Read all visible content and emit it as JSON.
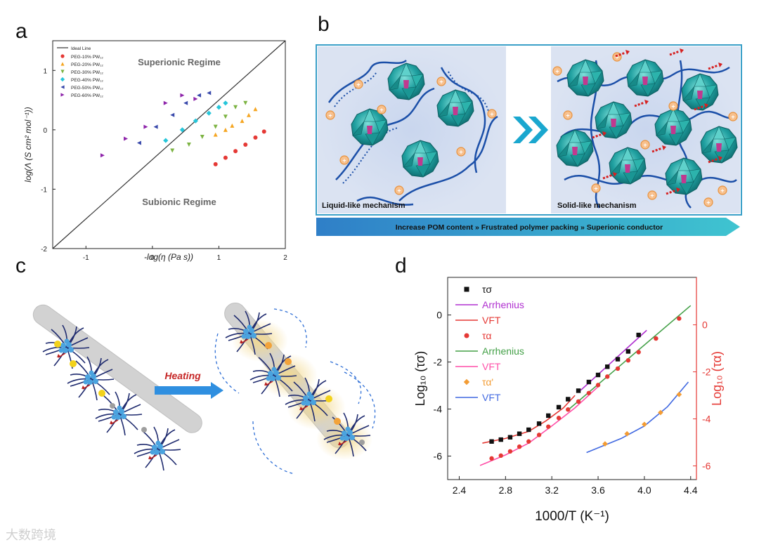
{
  "panels": {
    "a": "a",
    "b": "b",
    "c": "c",
    "d": "d"
  },
  "chart_data": [
    {
      "type": "scatter",
      "panel": "a",
      "xlabel": "-log(η (Pa s))",
      "ylabel": "log(Λ (S cm² mol⁻¹))",
      "xlim": [
        -1.5,
        2.0
      ],
      "ylim": [
        -2.0,
        1.5
      ],
      "xticks": [
        -1,
        0,
        1,
        2
      ],
      "yticks": [
        -2,
        -1,
        0,
        1
      ],
      "annotations": [
        "Superionic Regime",
        "Subionic Regime"
      ],
      "legend_position": "top-left",
      "ideal_line": {
        "name": "Ideal Line",
        "x": [
          -1.5,
          2.0
        ],
        "y": [
          -2.0,
          1.5
        ]
      },
      "series": [
        {
          "name": "PEG-10% PW₁₂",
          "color": "#e53935",
          "marker": "circle",
          "x": [
            0.95,
            1.1,
            1.25,
            1.4,
            1.55,
            1.68
          ],
          "y": [
            -0.58,
            -0.47,
            -0.36,
            -0.25,
            -0.13,
            -0.03
          ]
        },
        {
          "name": "PEG-20% PW₁₂",
          "color": "#f5a623",
          "marker": "triangle-up",
          "x": [
            0.95,
            1.1,
            1.2,
            1.35,
            1.45,
            1.55
          ],
          "y": [
            -0.08,
            0.0,
            0.07,
            0.15,
            0.25,
            0.35
          ]
        },
        {
          "name": "PEG-30% PW₁₂",
          "color": "#7cb342",
          "marker": "triangle-down",
          "x": [
            0.3,
            0.55,
            0.75,
            0.95,
            1.1,
            1.25,
            1.4
          ],
          "y": [
            -0.35,
            -0.25,
            -0.12,
            0.05,
            0.22,
            0.38,
            0.45
          ]
        },
        {
          "name": "PEG-40% PW₁₂",
          "color": "#26c6da",
          "marker": "diamond",
          "x": [
            0.2,
            0.45,
            0.65,
            0.85,
            1.0,
            1.1
          ],
          "y": [
            -0.18,
            0.0,
            0.15,
            0.28,
            0.38,
            0.45
          ]
        },
        {
          "name": "PEG-50% PW₁₂",
          "color": "#3949ab",
          "marker": "triangle-left",
          "x": [
            -0.2,
            0.05,
            0.3,
            0.5,
            0.7,
            0.85
          ],
          "y": [
            -0.22,
            0.05,
            0.25,
            0.45,
            0.58,
            0.62
          ]
        },
        {
          "name": "PEG-60% PW₁₂",
          "color": "#8e24aa",
          "marker": "triangle-right",
          "x": [
            -0.75,
            -0.4,
            -0.1,
            0.2,
            0.45,
            0.65
          ],
          "y": [
            -0.43,
            -0.15,
            0.05,
            0.45,
            0.58,
            0.52
          ]
        }
      ]
    },
    {
      "type": "line",
      "panel": "d",
      "xlabel": "1000/T (K⁻¹)",
      "ylabel_left": "Log₁₀ (τσ)",
      "ylabel_right": "Log₁₀ (τα)",
      "xlim": [
        2.3,
        4.45
      ],
      "ylim": [
        -7.0,
        1.6
      ],
      "xticks": [
        2.4,
        2.8,
        3.2,
        3.6,
        4.0,
        4.4
      ],
      "yticks_left": [
        0,
        -2,
        -4,
        -6
      ],
      "yticks_right": [
        0,
        -2,
        -4,
        -6
      ],
      "legend": [
        "τσ",
        "Arrhenius",
        "VFT",
        "τα",
        "Arrhenius",
        "VFT",
        "τα'",
        "VFT"
      ],
      "series": [
        {
          "name": "τσ",
          "color": "#111111",
          "marker": "square",
          "x": [
            2.68,
            2.76,
            2.84,
            2.92,
            3.0,
            3.09,
            3.17,
            3.26,
            3.34,
            3.43,
            3.52,
            3.6,
            3.68,
            3.77,
            3.86,
            3.95
          ],
          "y": [
            -5.38,
            -5.3,
            -5.2,
            -5.05,
            -4.88,
            -4.62,
            -4.28,
            -3.92,
            -3.58,
            -3.22,
            -2.85,
            -2.55,
            -2.2,
            -1.88,
            -1.55,
            -0.85
          ]
        },
        {
          "name": "Arrhenius",
          "color": "#b030d0",
          "marker": "none",
          "x": [
            3.45,
            4.02
          ],
          "y": [
            -3.2,
            -0.65
          ]
        },
        {
          "name": "VFT",
          "color": "#e53935",
          "marker": "none",
          "x": [
            2.6,
            2.8,
            3.0,
            3.15,
            3.3,
            3.4
          ],
          "y": [
            -5.45,
            -5.25,
            -4.95,
            -4.5,
            -3.95,
            -3.42
          ]
        },
        {
          "name": "τα",
          "color": "#e53935",
          "marker": "circle",
          "x": [
            2.68,
            2.76,
            2.84,
            2.92,
            3.0,
            3.09,
            3.17,
            3.26,
            3.34,
            3.43,
            3.52,
            3.6,
            3.68,
            3.77,
            3.86,
            3.95,
            4.1,
            4.3
          ],
          "y": [
            -6.1,
            -5.98,
            -5.8,
            -5.6,
            -5.38,
            -5.1,
            -4.75,
            -4.38,
            -4.02,
            -3.68,
            -3.32,
            -2.98,
            -2.62,
            -2.28,
            -1.93,
            -1.58,
            -1.0,
            -0.15
          ]
        },
        {
          "name": "Arrhenius",
          "color": "#43a047",
          "marker": "none",
          "x": [
            3.35,
            4.4
          ],
          "y": [
            -4.0,
            0.4
          ]
        },
        {
          "name": "VFT",
          "color": "#ff4fa8",
          "marker": "none",
          "x": [
            2.58,
            2.8,
            3.0,
            3.2,
            3.4,
            3.6
          ],
          "y": [
            -6.4,
            -5.95,
            -5.45,
            -4.72,
            -3.95,
            -3.05
          ]
        },
        {
          "name": "τα'",
          "color": "#f39c34",
          "marker": "diamond",
          "x": [
            3.66,
            3.85,
            4.0,
            4.14,
            4.3
          ],
          "y": [
            -5.48,
            -5.05,
            -4.65,
            -4.15,
            -3.38
          ]
        },
        {
          "name": "VFT",
          "color": "#4169e1",
          "marker": "none",
          "x": [
            3.5,
            3.8,
            4.0,
            4.2,
            4.38
          ],
          "y": [
            -5.85,
            -5.25,
            -4.72,
            -3.9,
            -2.85
          ]
        }
      ]
    }
  ],
  "diagram_b": {
    "left_label": "Liquid-like mechanism",
    "right_label": "Solid-like mechanism",
    "banner": "Increase POM content » Frustrated polymer packing » Superionic conductor",
    "colors": {
      "frame": "#3aa0c8",
      "bg": "#dbe3f2",
      "pom": "#1e9e9e",
      "chain": "#1b4fa8",
      "ion": "#f2a65a",
      "arrow": "#d62020"
    }
  },
  "diagram_c": {
    "heating_label": "Heating",
    "colors": {
      "rod": "#cfcfcf",
      "bead": "#4aa3df",
      "brush": "#1e2a6e",
      "glow": "#e8c36a",
      "ion": "#f2d21b",
      "arrow": "#2f6fd6"
    }
  },
  "watermark": "大数跨境"
}
